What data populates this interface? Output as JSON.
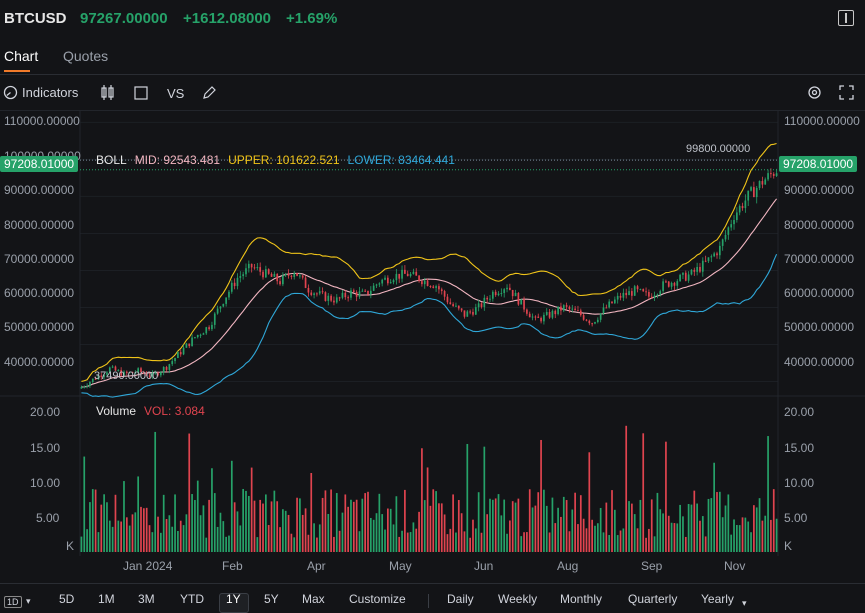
{
  "header": {
    "symbol": "BTCUSD",
    "price": "97267.00000",
    "change": "+1612.08000",
    "change_pct": "+1.69%"
  },
  "tabs": [
    {
      "label": "Chart"
    },
    {
      "label": "Quotes"
    }
  ],
  "toolbar": {
    "indicators_label": "Indicators",
    "vs_label": "VS"
  },
  "price_axis": {
    "ticks": [
      "110000.00000",
      "100000.00000",
      "90000.00000",
      "80000.00000",
      "70000.00000",
      "60000.00000",
      "50000.00000",
      "40000.00000"
    ],
    "current_price_tag": "97208.01000",
    "high_label": "99800.00000",
    "low_label": "37490.00000"
  },
  "boll": {
    "name": "BOLL",
    "mid": "MID: 92543.481",
    "upper": "UPPER: 101622.521",
    "lower": "LOWER: 83464.441"
  },
  "volume": {
    "name": "Volume",
    "vol": "VOL: 3.084",
    "ticks": [
      "20.00",
      "15.00",
      "10.00",
      "5.00",
      "K"
    ]
  },
  "x_axis": [
    "Jan 2024",
    "Feb",
    "Apr",
    "May",
    "Jun",
    "Aug",
    "Sep",
    "Nov"
  ],
  "bottom_bar": {
    "interval": "1D",
    "ranges": [
      "5D",
      "1M",
      "3M",
      "YTD",
      "1Y",
      "5Y",
      "Max",
      "Customize"
    ],
    "active_range": "1Y",
    "periods": [
      "Daily",
      "Weekly",
      "Monthly",
      "Quarterly",
      "Yearly"
    ]
  },
  "colors": {
    "up": "#26a269",
    "down": "#e0444f",
    "upper": "#f0c419",
    "mid": "#f2b6c1",
    "lower": "#2fa7d8",
    "accent": "#f07a2a"
  },
  "chart_data": {
    "type": "candlestick",
    "ylim": [
      35000,
      112000
    ],
    "close_path": [
      [
        0,
        38500
      ],
      [
        5,
        41000
      ],
      [
        10,
        43500
      ],
      [
        15,
        42000
      ],
      [
        20,
        42800
      ],
      [
        25,
        41500
      ],
      [
        30,
        44000
      ],
      [
        35,
        48000
      ],
      [
        40,
        52000
      ],
      [
        45,
        55000
      ],
      [
        50,
        62000
      ],
      [
        55,
        68000
      ],
      [
        60,
        71000
      ],
      [
        65,
        69000
      ],
      [
        70,
        67000
      ],
      [
        75,
        70000
      ],
      [
        80,
        65000
      ],
      [
        85,
        63000
      ],
      [
        90,
        62000
      ],
      [
        95,
        64000
      ],
      [
        100,
        63500
      ],
      [
        105,
        67000
      ],
      [
        110,
        68500
      ],
      [
        115,
        69000
      ],
      [
        120,
        67500
      ],
      [
        125,
        66000
      ],
      [
        130,
        61000
      ],
      [
        135,
        58000
      ],
      [
        140,
        60000
      ],
      [
        145,
        64000
      ],
      [
        150,
        66000
      ],
      [
        155,
        61000
      ],
      [
        160,
        56500
      ],
      [
        165,
        58000
      ],
      [
        170,
        60000
      ],
      [
        175,
        58500
      ],
      [
        180,
        56000
      ],
      [
        185,
        60000
      ],
      [
        190,
        63000
      ],
      [
        195,
        64500
      ],
      [
        200,
        63000
      ],
      [
        205,
        66000
      ],
      [
        210,
        67500
      ],
      [
        215,
        69000
      ],
      [
        220,
        72000
      ],
      [
        225,
        76000
      ],
      [
        230,
        85000
      ],
      [
        235,
        90000
      ],
      [
        240,
        94000
      ],
      [
        245,
        97200
      ]
    ],
    "volume_ylim": [
      0,
      20
    ]
  }
}
